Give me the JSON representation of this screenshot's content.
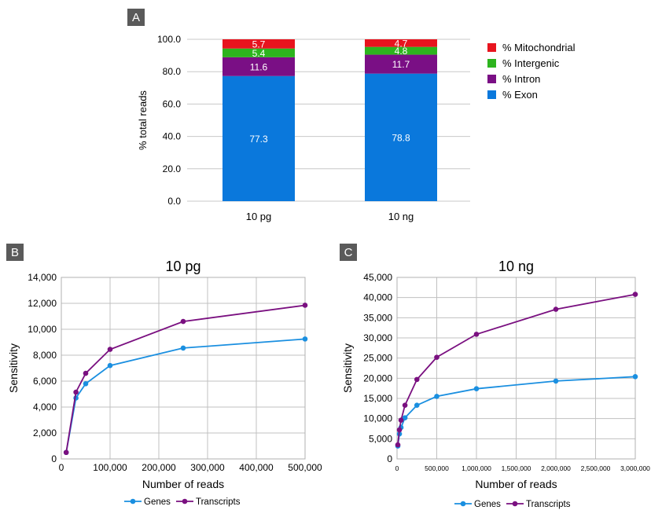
{
  "panels": {
    "a_letter": "A",
    "b_letter": "B",
    "c_letter": "C"
  },
  "chart_data": [
    {
      "type": "bar",
      "stacked": true,
      "title": "",
      "xlabel": "",
      "ylabel": "% total reads",
      "ylim": [
        0,
        100
      ],
      "yticks": [
        "0.0",
        "20.0",
        "40.0",
        "60.0",
        "80.0",
        "100.0"
      ],
      "categories": [
        "10 pg",
        "10 ng"
      ],
      "grid": true,
      "legend_position": "right",
      "series": [
        {
          "name": "% Exon",
          "values": [
            77.3,
            78.8
          ],
          "labels": [
            "77.3",
            "78.8"
          ],
          "color": "#0a78dc"
        },
        {
          "name": "% Intron",
          "values": [
            11.6,
            11.7
          ],
          "labels": [
            "11.6",
            "11.7"
          ],
          "color": "#7a0f85"
        },
        {
          "name": "% Intergenic",
          "values": [
            5.4,
            4.8
          ],
          "labels": [
            "5.4",
            "4.8"
          ],
          "color": "#2db41e"
        },
        {
          "name": "% Mitochondrial",
          "values": [
            5.7,
            4.7
          ],
          "labels": [
            "5.7",
            "4.7"
          ],
          "color": "#e8141e"
        }
      ]
    },
    {
      "type": "line",
      "title": "10 pg",
      "xlabel": "Number of reads",
      "ylabel": "Sensitivity",
      "xlim": [
        0,
        500000
      ],
      "ylim": [
        0,
        14000
      ],
      "xticks": [
        "0",
        "100,000",
        "200,000",
        "300,000",
        "400,000",
        "500,000"
      ],
      "yticks": [
        "0",
        "2,000",
        "4,000",
        "6,000",
        "8,000",
        "10,000",
        "12,000",
        "14,000"
      ],
      "grid": true,
      "legend_position": "bottom",
      "series": [
        {
          "name": "Genes",
          "color": "#1a8fe0",
          "x": [
            10000,
            30000,
            50000,
            100000,
            250000,
            500000
          ],
          "y": [
            500,
            4700,
            5800,
            7200,
            8550,
            9250
          ]
        },
        {
          "name": "Transcripts",
          "color": "#7a1080",
          "x": [
            10000,
            30000,
            50000,
            100000,
            250000,
            500000
          ],
          "y": [
            500,
            5150,
            6600,
            8450,
            10600,
            11850
          ]
        }
      ]
    },
    {
      "type": "line",
      "title": "10 ng",
      "xlabel": "Number of reads",
      "ylabel": "Sensitivity",
      "xlim": [
        0,
        3000000
      ],
      "ylim": [
        0,
        45000
      ],
      "xticks": [
        "0",
        "500,000",
        "1,000,000",
        "1,500,000",
        "2,000,000",
        "2,500,000",
        "3,000,000"
      ],
      "yticks": [
        "0",
        "5,000",
        "10,000",
        "15,000",
        "20,000",
        "25,000",
        "30,000",
        "35,000",
        "40,000",
        "45,000"
      ],
      "grid": true,
      "legend_position": "bottom",
      "series": [
        {
          "name": "Genes",
          "color": "#1a8fe0",
          "x": [
            10000,
            30000,
            50000,
            100000,
            250000,
            500000,
            1000000,
            2000000,
            3000000
          ],
          "y": [
            3200,
            6200,
            7800,
            10200,
            13300,
            15500,
            17400,
            19300,
            20400
          ]
        },
        {
          "name": "Transcripts",
          "color": "#7a1080",
          "x": [
            10000,
            30000,
            50000,
            100000,
            250000,
            500000,
            1000000,
            2000000,
            3000000
          ],
          "y": [
            3500,
            7200,
            9600,
            13300,
            19700,
            25200,
            30900,
            37100,
            40800
          ]
        }
      ]
    }
  ]
}
